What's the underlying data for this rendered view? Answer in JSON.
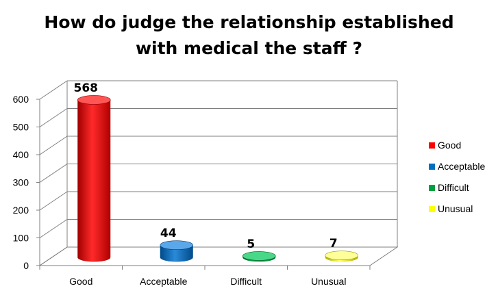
{
  "chart_data": {
    "type": "bar",
    "title_lines": [
      "How do judge the relationship established",
      "with medical the staff ?"
    ],
    "categories": [
      "Good",
      "Acceptable",
      "Difficult",
      "Unusual"
    ],
    "values": [
      568,
      44,
      5,
      7
    ],
    "data_labels": [
      "568",
      "44",
      "5",
      "7"
    ],
    "colors": [
      "#ff0000",
      "#0070c0",
      "#00a040",
      "#ffff00"
    ],
    "ylim": [
      0,
      600
    ],
    "yticks": [
      "0",
      "100",
      "200",
      "300",
      "400",
      "500",
      "600"
    ],
    "grid": true,
    "legend_position": "right",
    "style": "3d-cylinder"
  }
}
